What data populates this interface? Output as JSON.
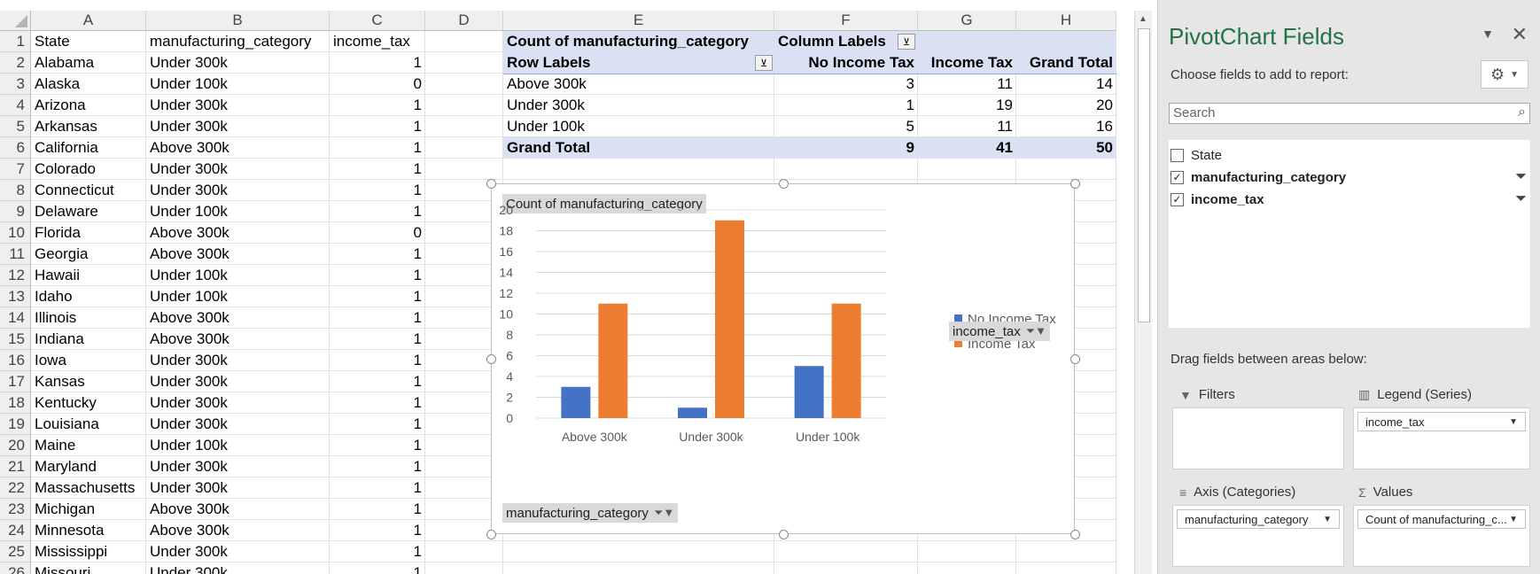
{
  "columns": [
    "A",
    "B",
    "C",
    "D",
    "E",
    "F",
    "G",
    "H"
  ],
  "rows_count": 26,
  "headers": {
    "state": "State",
    "category": "manufacturing_category",
    "tax": "income_tax"
  },
  "rows": [
    {
      "state": "Alabama",
      "category": "Under 300k",
      "tax": "1"
    },
    {
      "state": "Alaska",
      "category": "Under 100k",
      "tax": "0"
    },
    {
      "state": "Arizona",
      "category": "Under 300k",
      "tax": "1"
    },
    {
      "state": "Arkansas",
      "category": "Under 300k",
      "tax": "1"
    },
    {
      "state": "California",
      "category": "Above 300k",
      "tax": "1"
    },
    {
      "state": "Colorado",
      "category": "Under 300k",
      "tax": "1"
    },
    {
      "state": "Connecticut",
      "category": "Under 300k",
      "tax": "1"
    },
    {
      "state": "Delaware",
      "category": "Under 100k",
      "tax": "1"
    },
    {
      "state": "Florida",
      "category": "Above 300k",
      "tax": "0"
    },
    {
      "state": "Georgia",
      "category": "Above 300k",
      "tax": "1"
    },
    {
      "state": "Hawaii",
      "category": "Under 100k",
      "tax": "1"
    },
    {
      "state": "Idaho",
      "category": "Under 100k",
      "tax": "1"
    },
    {
      "state": "Illinois",
      "category": "Above 300k",
      "tax": "1"
    },
    {
      "state": "Indiana",
      "category": "Above 300k",
      "tax": "1"
    },
    {
      "state": "Iowa",
      "category": "Under 300k",
      "tax": "1"
    },
    {
      "state": "Kansas",
      "category": "Under 300k",
      "tax": "1"
    },
    {
      "state": "Kentucky",
      "category": "Under 300k",
      "tax": "1"
    },
    {
      "state": "Louisiana",
      "category": "Under 300k",
      "tax": "1"
    },
    {
      "state": "Maine",
      "category": "Under 100k",
      "tax": "1"
    },
    {
      "state": "Maryland",
      "category": "Under 300k",
      "tax": "1"
    },
    {
      "state": "Massachusetts",
      "category": "Under 300k",
      "tax": "1"
    },
    {
      "state": "Michigan",
      "category": "Above 300k",
      "tax": "1"
    },
    {
      "state": "Minnesota",
      "category": "Above 300k",
      "tax": "1"
    },
    {
      "state": "Mississippi",
      "category": "Under 300k",
      "tax": "1"
    },
    {
      "state": "Missouri",
      "category": "Under 300k",
      "tax": "1"
    }
  ],
  "pivot": {
    "title": "Count of manufacturing_category",
    "col_labels": "Column Labels",
    "row_labels": "Row Labels",
    "col_heads": [
      "No Income Tax",
      "Income Tax",
      "Grand Total"
    ],
    "rows": [
      {
        "label": "Above 300k",
        "values": [
          "3",
          "11",
          "14"
        ]
      },
      {
        "label": "Under 300k",
        "values": [
          "1",
          "19",
          "20"
        ]
      },
      {
        "label": "Under 100k",
        "values": [
          "5",
          "11",
          "16"
        ]
      }
    ],
    "grand": {
      "label": "Grand Total",
      "values": [
        "9",
        "41",
        "50"
      ]
    }
  },
  "chart_data": {
    "type": "bar",
    "title": "Count of manufacturing_category",
    "categories": [
      "Above 300k",
      "Under 300k",
      "Under 100k"
    ],
    "series": [
      {
        "name": "No Income Tax",
        "values": [
          3,
          1,
          5
        ],
        "color": "#4472c4"
      },
      {
        "name": "Income Tax",
        "values": [
          11,
          19,
          11
        ],
        "color": "#ed7d31"
      }
    ],
    "ylim": [
      0,
      20
    ],
    "yticks": [
      "0",
      "2",
      "4",
      "6",
      "8",
      "10",
      "12",
      "14",
      "16",
      "18",
      "20"
    ],
    "legend_title": "income_tax",
    "axis_field": "manufacturing_category",
    "legend_position": "right",
    "grid": true
  },
  "pane": {
    "title": "PivotChart Fields",
    "subtitle": "Choose fields to add to report:",
    "search_placeholder": "Search",
    "fields": [
      {
        "label": "State",
        "checked": false,
        "bold": false,
        "filtered": false
      },
      {
        "label": "manufacturing_category",
        "checked": true,
        "bold": true,
        "filtered": true
      },
      {
        "label": "income_tax",
        "checked": true,
        "bold": true,
        "filtered": true
      }
    ],
    "drag_label": "Drag fields between areas below:",
    "areas": {
      "filters": "Filters",
      "legend": "Legend (Series)",
      "axis": "Axis (Categories)",
      "values": "Values",
      "legend_value": "income_tax",
      "axis_value": "manufacturing_category",
      "values_value": "Count of manufacturing_c..."
    }
  }
}
